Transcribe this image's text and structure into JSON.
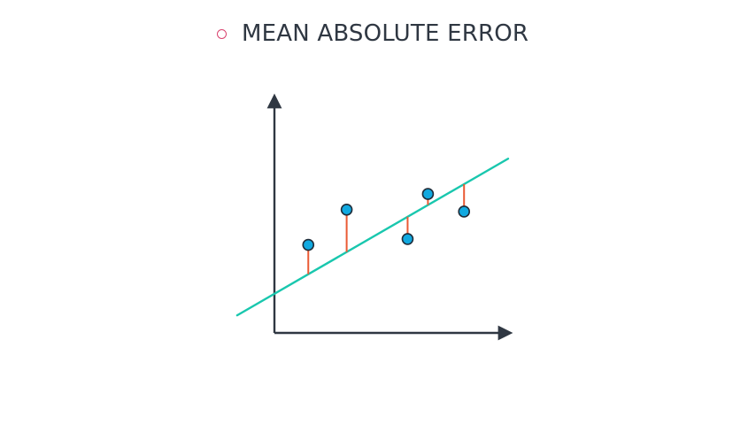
{
  "title": "MEAN ABSOLUTE ERROR",
  "colors": {
    "bullet": "#d9426e",
    "title_text": "#2f3742",
    "axis": "#2f3742",
    "regression_line": "#19c7ae",
    "error_segment": "#ea5a34",
    "point_fill": "#11a9e0",
    "point_stroke": "#1f2d3a"
  },
  "chart_data": {
    "type": "scatter",
    "title": "",
    "xlabel": "",
    "ylabel": "",
    "xlim": [
      0,
      10
    ],
    "ylim": [
      0,
      10
    ],
    "grid": false,
    "fit_line": {
      "slope": 0.667,
      "intercept": 2.0,
      "x_range": [
        -1.65,
        10.35
      ]
    },
    "points": [
      {
        "x": 1.5,
        "y": 4.5
      },
      {
        "x": 3.2,
        "y": 6.3
      },
      {
        "x": 5.9,
        "y": 4.8
      },
      {
        "x": 6.8,
        "y": 7.1
      },
      {
        "x": 8.4,
        "y": 6.2
      }
    ]
  }
}
